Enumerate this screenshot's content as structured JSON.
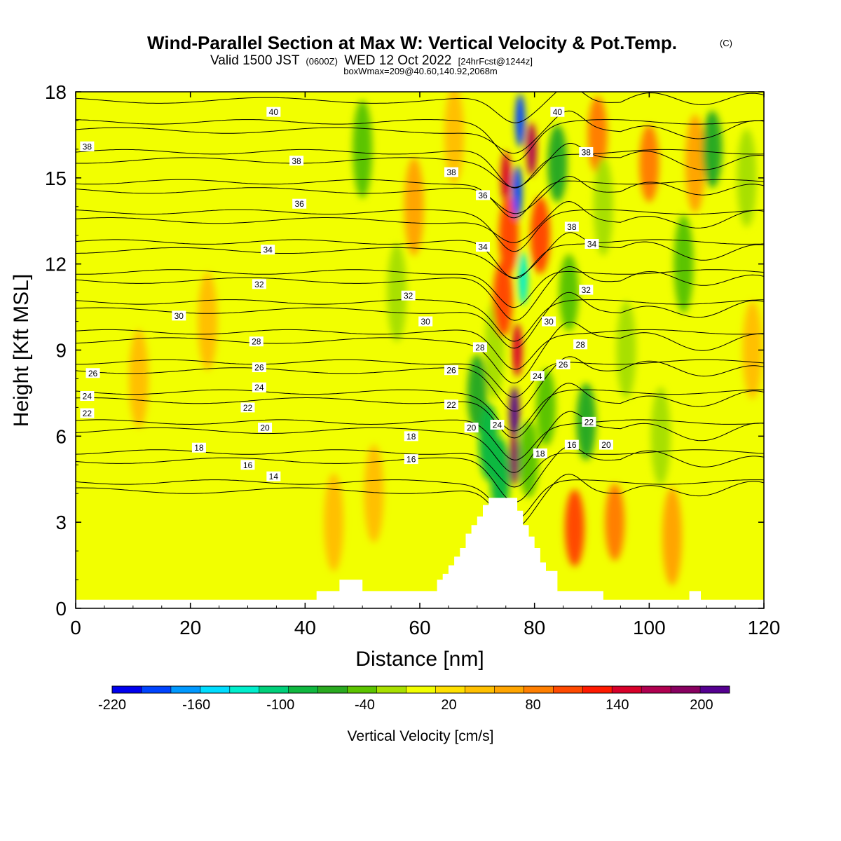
{
  "title": {
    "main": "Wind-Parallel Section at Max W: Vertical Velocity & Pot.Temp.",
    "copyright": "(C)",
    "valid_prefix": "Valid 1500 JST",
    "valid_zulu": "(0600Z)",
    "valid_date": "WED 12 Oct 2022",
    "forecast": "[24hrFcst@1244z]",
    "boxmax": "boxWmax=209@40.60,140.92,2068m"
  },
  "colors": {
    "background": "#f2ff00",
    "terrain": "#ffffff",
    "contour": "#000000"
  },
  "chart_data": {
    "type": "heatmap",
    "xlabel": "Distance [nm]",
    "ylabel": "Height [Kft MSL]",
    "xlim": [
      0,
      120
    ],
    "ylim": [
      0,
      18
    ],
    "x_ticks": [
      "0",
      "20",
      "40",
      "60",
      "80",
      "100",
      "120"
    ],
    "y_ticks": [
      "0",
      "3",
      "6",
      "9",
      "12",
      "15",
      "18"
    ],
    "colorbar": {
      "title": "Vertical Velocity [cm/s]",
      "tick_labels": [
        "-220",
        "-160",
        "-100",
        "-40",
        "20",
        "80",
        "140",
        "200"
      ],
      "bin_min": -220,
      "bin_max": 200,
      "bin_step": 20,
      "colors": [
        "#0000ee",
        "#0044ff",
        "#0099ff",
        "#00ddff",
        "#00eecc",
        "#00d07a",
        "#10b840",
        "#2aaa20",
        "#5cc400",
        "#a8e000",
        "#f2ff00",
        "#ffe000",
        "#ffc000",
        "#ffa500",
        "#ff7f00",
        "#ff4a00",
        "#ff1a00",
        "#d8002a",
        "#b00050",
        "#880060",
        "#550090"
      ]
    },
    "max_w": {
      "value_cm_s": 209,
      "x_nm": 76.5,
      "height_kft": 6.8
    },
    "terrain_profile": {
      "x_nm": [
        0,
        42,
        42,
        46,
        46,
        50,
        50,
        63,
        63,
        64,
        64,
        65,
        65,
        66,
        66,
        67,
        67,
        68,
        68,
        69,
        69,
        70,
        70,
        71,
        71,
        72,
        72,
        77,
        77,
        78,
        78,
        79,
        79,
        80,
        80,
        81,
        81,
        82,
        82,
        84,
        84,
        92,
        92,
        96,
        96,
        107,
        107,
        109,
        109,
        120
      ],
      "height_kft": [
        0.3,
        0.3,
        0.6,
        0.6,
        1.0,
        1.0,
        0.6,
        0.6,
        1.0,
        1.0,
        1.2,
        1.2,
        1.5,
        1.5,
        1.8,
        1.8,
        2.1,
        2.1,
        2.6,
        2.6,
        2.9,
        2.9,
        3.2,
        3.2,
        3.6,
        3.6,
        3.85,
        3.85,
        3.4,
        3.4,
        2.9,
        2.9,
        2.5,
        2.5,
        2.1,
        2.1,
        1.6,
        1.6,
        1.3,
        1.3,
        0.6,
        0.6,
        0.3,
        0.3,
        0.3,
        0.3,
        0.6,
        0.6,
        0.3,
        0.3
      ]
    },
    "w_features": [
      {
        "x_nm": 11,
        "height_kft": 8.0,
        "value": 30
      },
      {
        "x_nm": 23,
        "height_kft": 10.0,
        "value": 30
      },
      {
        "x_nm": 45,
        "height_kft": 3.0,
        "value": 30
      },
      {
        "x_nm": 50,
        "height_kft": 16.0,
        "value": -50
      },
      {
        "x_nm": 52,
        "height_kft": 4.0,
        "value": 30
      },
      {
        "x_nm": 56,
        "height_kft": 11.0,
        "value": -40
      },
      {
        "x_nm": 59,
        "height_kft": 14.0,
        "value": 40
      },
      {
        "x_nm": 66,
        "height_kft": 16.5,
        "value": 35
      },
      {
        "x_nm": 70,
        "height_kft": 7.5,
        "value": -70
      },
      {
        "x_nm": 72,
        "height_kft": 5.8,
        "value": -90
      },
      {
        "x_nm": 73,
        "height_kft": 9.0,
        "value": -40
      },
      {
        "x_nm": 74,
        "height_kft": 4.6,
        "value": -100
      },
      {
        "x_nm": 74.5,
        "height_kft": 10.8,
        "value": 90
      },
      {
        "x_nm": 75,
        "height_kft": 15.0,
        "value": 120
      },
      {
        "x_nm": 75.5,
        "height_kft": 13.0,
        "value": 80
      },
      {
        "x_nm": 76.5,
        "height_kft": 6.8,
        "value": 209
      },
      {
        "x_nm": 76.5,
        "height_kft": 5.2,
        "value": 160
      },
      {
        "x_nm": 77,
        "height_kft": 9.0,
        "value": 120
      },
      {
        "x_nm": 77,
        "height_kft": 14.5,
        "value": -200
      },
      {
        "x_nm": 77.5,
        "height_kft": 17.0,
        "value": -200
      },
      {
        "x_nm": 78,
        "height_kft": 11.5,
        "value": -140
      },
      {
        "x_nm": 79.5,
        "height_kft": 16.0,
        "value": 140
      },
      {
        "x_nm": 79,
        "height_kft": 5.2,
        "value": -60
      },
      {
        "x_nm": 81,
        "height_kft": 13.0,
        "value": 80
      },
      {
        "x_nm": 82,
        "height_kft": 7.0,
        "value": -60
      },
      {
        "x_nm": 84,
        "height_kft": 15.5,
        "value": -70
      },
      {
        "x_nm": 86,
        "height_kft": 11.0,
        "value": -60
      },
      {
        "x_nm": 87,
        "height_kft": 2.8,
        "value": 80
      },
      {
        "x_nm": 89,
        "height_kft": 6.5,
        "value": -70
      },
      {
        "x_nm": 91,
        "height_kft": 16.5,
        "value": 70
      },
      {
        "x_nm": 92,
        "height_kft": 14.0,
        "value": -40
      },
      {
        "x_nm": 94,
        "height_kft": 3.0,
        "value": 60
      },
      {
        "x_nm": 96,
        "height_kft": 9.0,
        "value": -40
      },
      {
        "x_nm": 100,
        "height_kft": 15.5,
        "value": 70
      },
      {
        "x_nm": 102,
        "height_kft": 6.0,
        "value": -40
      },
      {
        "x_nm": 104,
        "height_kft": 2.5,
        "value": 50
      },
      {
        "x_nm": 106,
        "height_kft": 12.0,
        "value": -50
      },
      {
        "x_nm": 108,
        "height_kft": 15.5,
        "value": 50
      },
      {
        "x_nm": 111,
        "height_kft": 16.0,
        "value": -80
      },
      {
        "x_nm": 117,
        "height_kft": 15.0,
        "value": -40
      },
      {
        "x_nm": 118,
        "height_kft": 9.0,
        "value": 20
      }
    ],
    "contour_levels": [
      14,
      16,
      18,
      20,
      22,
      24,
      26,
      28,
      30,
      32,
      34,
      36,
      38,
      40
    ],
    "contour_labels": [
      {
        "text": "40",
        "x_nm": 34.5,
        "height_kft": 17.3
      },
      {
        "text": "38",
        "x_nm": 2,
        "height_kft": 16.1
      },
      {
        "text": "38",
        "x_nm": 38.5,
        "height_kft": 15.6
      },
      {
        "text": "38",
        "x_nm": 65.5,
        "height_kft": 15.2
      },
      {
        "text": "36",
        "x_nm": 39,
        "height_kft": 14.1
      },
      {
        "text": "36",
        "x_nm": 71,
        "height_kft": 14.4
      },
      {
        "text": "34",
        "x_nm": 33.5,
        "height_kft": 12.5
      },
      {
        "text": "34",
        "x_nm": 71,
        "height_kft": 12.6
      },
      {
        "text": "32",
        "x_nm": 32,
        "height_kft": 11.3
      },
      {
        "text": "32",
        "x_nm": 58,
        "height_kft": 10.9
      },
      {
        "text": "30",
        "x_nm": 18,
        "height_kft": 10.2
      },
      {
        "text": "30",
        "x_nm": 61,
        "height_kft": 10.0
      },
      {
        "text": "28",
        "x_nm": 31.5,
        "height_kft": 9.3
      },
      {
        "text": "28",
        "x_nm": 70.5,
        "height_kft": 9.1
      },
      {
        "text": "26",
        "x_nm": 3,
        "height_kft": 8.2
      },
      {
        "text": "26",
        "x_nm": 32,
        "height_kft": 8.4
      },
      {
        "text": "26",
        "x_nm": 65.5,
        "height_kft": 8.3
      },
      {
        "text": "24",
        "x_nm": 2,
        "height_kft": 7.4
      },
      {
        "text": "24",
        "x_nm": 32,
        "height_kft": 7.7
      },
      {
        "text": "22",
        "x_nm": 2,
        "height_kft": 6.8
      },
      {
        "text": "22",
        "x_nm": 30,
        "height_kft": 7.0
      },
      {
        "text": "22",
        "x_nm": 65.5,
        "height_kft": 7.1
      },
      {
        "text": "20",
        "x_nm": 33,
        "height_kft": 6.3
      },
      {
        "text": "20",
        "x_nm": 69,
        "height_kft": 6.3
      },
      {
        "text": "24",
        "x_nm": 73.5,
        "height_kft": 6.4
      },
      {
        "text": "18",
        "x_nm": 21.5,
        "height_kft": 5.6
      },
      {
        "text": "18",
        "x_nm": 58.5,
        "height_kft": 6.0
      },
      {
        "text": "16",
        "x_nm": 30,
        "height_kft": 5.0
      },
      {
        "text": "16",
        "x_nm": 58.5,
        "height_kft": 5.2
      },
      {
        "text": "14",
        "x_nm": 34.5,
        "height_kft": 4.6
      },
      {
        "text": "40",
        "x_nm": 84,
        "height_kft": 17.3
      },
      {
        "text": "38",
        "x_nm": 89,
        "height_kft": 15.9
      },
      {
        "text": "38",
        "x_nm": 86.5,
        "height_kft": 13.3
      },
      {
        "text": "34",
        "x_nm": 90,
        "height_kft": 12.7
      },
      {
        "text": "32",
        "x_nm": 89,
        "height_kft": 11.1
      },
      {
        "text": "30",
        "x_nm": 82.5,
        "height_kft": 10.0
      },
      {
        "text": "28",
        "x_nm": 88,
        "height_kft": 9.2
      },
      {
        "text": "26",
        "x_nm": 85,
        "height_kft": 8.5
      },
      {
        "text": "24",
        "x_nm": 80.5,
        "height_kft": 8.1
      },
      {
        "text": "22",
        "x_nm": 89.5,
        "height_kft": 6.5
      },
      {
        "text": "20",
        "x_nm": 92.5,
        "height_kft": 5.7
      },
      {
        "text": "16",
        "x_nm": 86.5,
        "height_kft": 5.7
      },
      {
        "text": "18",
        "x_nm": 81,
        "height_kft": 5.4
      }
    ]
  }
}
